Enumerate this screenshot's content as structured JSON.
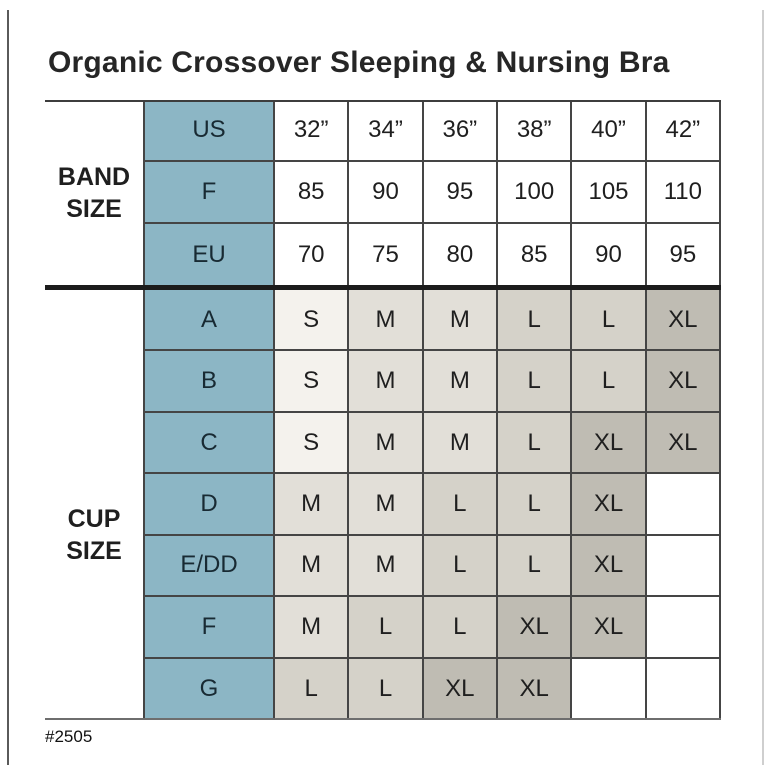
{
  "page": {
    "title": "Organic Crossover Sleeping & Nursing Bra",
    "footnote": "#2505"
  },
  "colors": {
    "header_teal": "#8cb6c5",
    "size_s": "#f4f2ed",
    "size_m": "#e2dfd8",
    "size_l": "#d5d2c9",
    "size_xl": "#bfbcb3",
    "empty_cell": "#ffffff",
    "grid_line": "#454545",
    "thick_divider": "#1c1c1c",
    "text": "#1f1f1f"
  },
  "chart_data": {
    "type": "table",
    "title": "Organic Crossover Sleeping & Nursing Bra",
    "columns": [
      "32”",
      "34”",
      "36”",
      "38”",
      "40”",
      "42”"
    ],
    "shading_legend": "cup cells shaded by size value: S lightest, then M, L, XL darkest; blank cells white",
    "row_groups": [
      {
        "group_label": "BAND SIZE",
        "rows": [
          {
            "label": "US",
            "values": [
              "32”",
              "34”",
              "36”",
              "38”",
              "40”",
              "42”"
            ]
          },
          {
            "label": "F",
            "values": [
              "85",
              "90",
              "95",
              "100",
              "105",
              "110"
            ]
          },
          {
            "label": "EU",
            "values": [
              "70",
              "75",
              "80",
              "85",
              "90",
              "95"
            ]
          }
        ]
      },
      {
        "group_label": "CUP SIZE",
        "rows": [
          {
            "label": "A",
            "values": [
              "S",
              "M",
              "M",
              "L",
              "L",
              "XL"
            ]
          },
          {
            "label": "B",
            "values": [
              "S",
              "M",
              "M",
              "L",
              "L",
              "XL"
            ]
          },
          {
            "label": "C",
            "values": [
              "S",
              "M",
              "M",
              "L",
              "XL",
              "XL"
            ]
          },
          {
            "label": "D",
            "values": [
              "M",
              "M",
              "L",
              "L",
              "XL",
              ""
            ]
          },
          {
            "label": "E/DD",
            "values": [
              "M",
              "M",
              "L",
              "L",
              "XL",
              ""
            ]
          },
          {
            "label": "F",
            "values": [
              "M",
              "L",
              "L",
              "XL",
              "XL",
              ""
            ]
          },
          {
            "label": "G",
            "values": [
              "L",
              "L",
              "XL",
              "XL",
              "",
              ""
            ]
          }
        ]
      }
    ]
  }
}
